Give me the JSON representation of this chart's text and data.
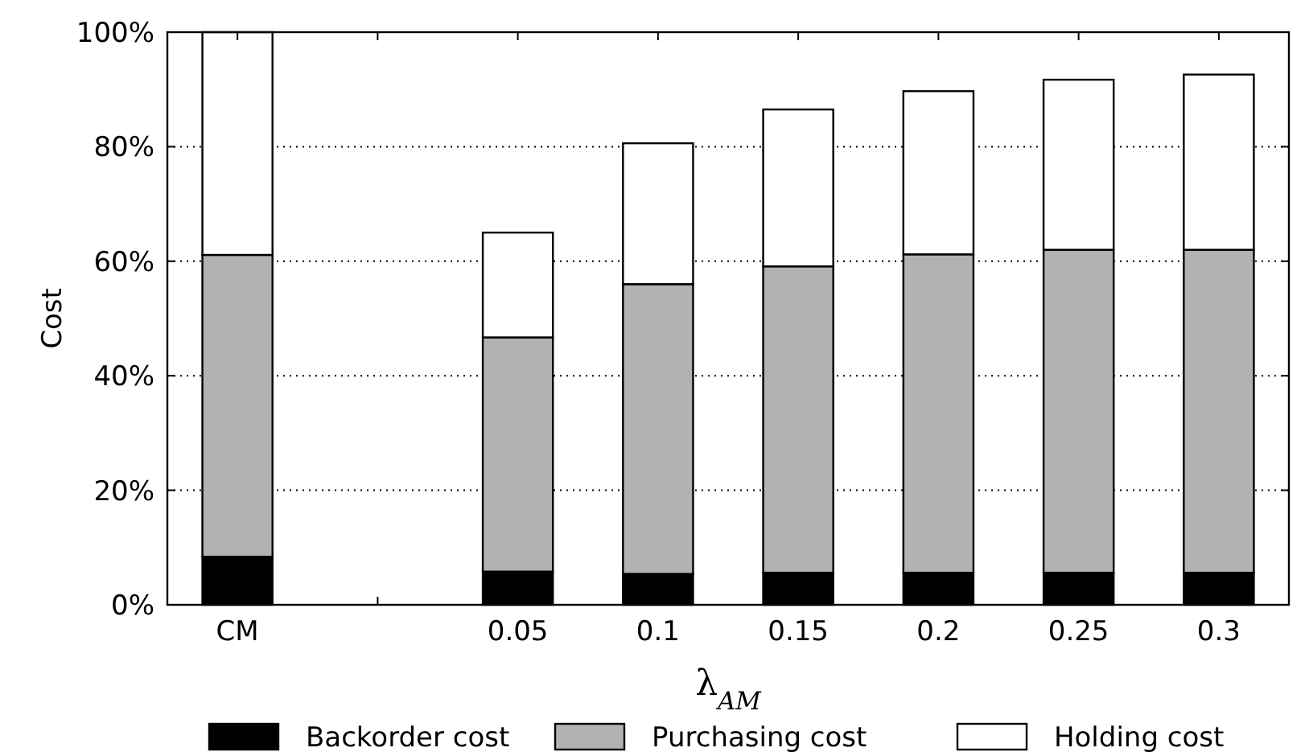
{
  "chart_data": {
    "type": "bar",
    "stacked": true,
    "ylabel": "Cost",
    "xlabel": "λ$_{AM}$",
    "categories": [
      "CM",
      null,
      "0.05",
      "0.1",
      "0.15",
      "0.2",
      "0.25",
      "0.3"
    ],
    "series": [
      {
        "name": "Backorder cost",
        "color": "#000000",
        "values": [
          8.4,
          0,
          5.8,
          5.4,
          5.6,
          5.6,
          5.6,
          5.6
        ]
      },
      {
        "name": "Purchasing cost",
        "color": "#b2b2b2",
        "values": [
          52.7,
          0,
          40.9,
          50.6,
          53.5,
          55.6,
          56.4,
          56.4
        ]
      },
      {
        "name": "Holding cost",
        "color": "#ffffff",
        "values": [
          38.9,
          0,
          18.3,
          24.6,
          27.4,
          28.5,
          29.7,
          30.6
        ]
      }
    ],
    "ylim": [
      0,
      100
    ],
    "yticks": [
      {
        "value": 0,
        "label": "0%"
      },
      {
        "value": 20,
        "label": "20%"
      },
      {
        "value": 40,
        "label": "40%"
      },
      {
        "value": 60,
        "label": "60%"
      },
      {
        "value": 80,
        "label": "80%"
      },
      {
        "value": 100,
        "label": "100%"
      }
    ],
    "grid": "y",
    "legend": "bottom"
  }
}
